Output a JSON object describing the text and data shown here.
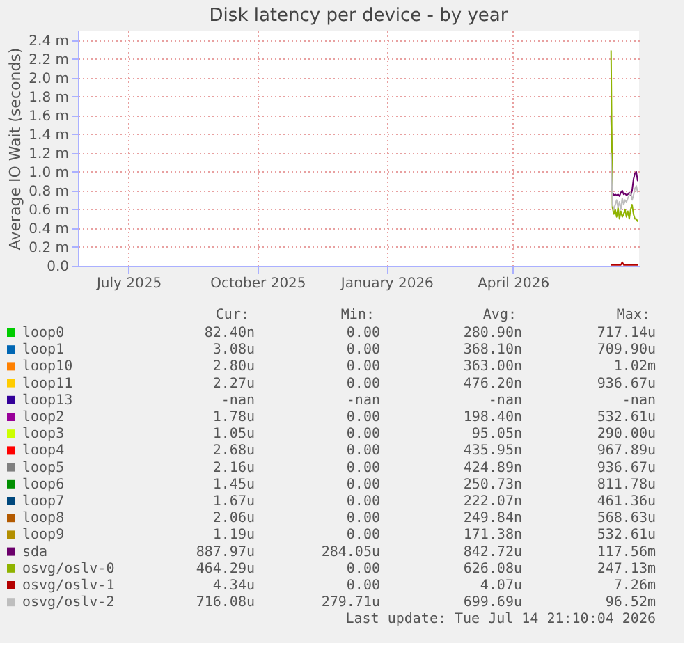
{
  "chart_data": {
    "type": "line",
    "title": "Disk latency per device - by year",
    "ylabel": "Average IO Wait (seconds)",
    "xlim": [
      "2025-06-10",
      "2026-07-15"
    ],
    "xticks": [
      {
        "value": "2025-07-16",
        "label": "July 2025"
      },
      {
        "value": "2025-10-16",
        "label": "October 2025"
      },
      {
        "value": "2026-01-16",
        "label": "January 2026"
      },
      {
        "value": "2026-04-16",
        "label": "April 2026"
      }
    ],
    "ylim": [
      0,
      2.5
    ],
    "yticks": [
      {
        "value": 0,
        "label": "0.0"
      },
      {
        "value": 0.2,
        "label": "0.2 m"
      },
      {
        "value": 0.4,
        "label": "0.4 m"
      },
      {
        "value": 0.6,
        "label": "0.6 m"
      },
      {
        "value": 0.8,
        "label": "0.8 m"
      },
      {
        "value": 1.0,
        "label": "1.0 m"
      },
      {
        "value": 1.2,
        "label": "1.2 m"
      },
      {
        "value": 1.4,
        "label": "1.4 m"
      },
      {
        "value": 1.6,
        "label": "1.6 m"
      },
      {
        "value": 1.8,
        "label": "1.8 m"
      },
      {
        "value": 2.0,
        "label": "2.0 m"
      },
      {
        "value": 2.2,
        "label": "2.2 m"
      },
      {
        "value": 2.4,
        "label": "2.4 m"
      }
    ],
    "grid": true,
    "legend": "bottom",
    "line_style": "solid",
    "series": [
      {
        "name": "loop0",
        "color": "#00cc00",
        "values": [
          null
        ]
      },
      {
        "name": "loop1",
        "color": "#0066b3",
        "values": [
          null
        ]
      },
      {
        "name": "loop10",
        "color": "#ff8000",
        "values": [
          null
        ]
      },
      {
        "name": "loop11",
        "color": "#ffcc00",
        "values": [
          null
        ]
      },
      {
        "name": "loop13",
        "color": "#330099",
        "values": [
          null
        ]
      },
      {
        "name": "loop2",
        "color": "#990099",
        "values": [
          null
        ]
      },
      {
        "name": "loop3",
        "color": "#ccff00",
        "values": [
          null
        ]
      },
      {
        "name": "loop4",
        "color": "#ff0000",
        "values": [
          null
        ]
      },
      {
        "name": "loop5",
        "color": "#808080",
        "values": [
          null
        ]
      },
      {
        "name": "loop6",
        "color": "#008f00",
        "values": [
          null
        ]
      },
      {
        "name": "loop7",
        "color": "#00487d",
        "values": [
          null
        ]
      },
      {
        "name": "loop8",
        "color": "#b35a00",
        "values": [
          null
        ]
      },
      {
        "name": "loop9",
        "color": "#b38f00",
        "values": [
          null
        ]
      },
      {
        "name": "sda",
        "color": "#6b006b",
        "x": [
          "2026-06-25",
          "2026-06-26",
          "2026-06-27",
          "2026-06-28",
          "2026-06-29",
          "2026-06-30",
          "2026-07-01",
          "2026-07-02",
          "2026-07-03",
          "2026-07-04",
          "2026-07-05",
          "2026-07-06",
          "2026-07-07",
          "2026-07-08",
          "2026-07-09",
          "2026-07-10",
          "2026-07-11",
          "2026-07-12",
          "2026-07-13",
          "2026-07-14"
        ],
        "values": [
          1.6,
          0.78,
          0.75,
          0.76,
          0.75,
          0.76,
          0.74,
          0.78,
          0.8,
          0.76,
          0.77,
          0.75,
          0.76,
          0.78,
          0.75,
          0.8,
          0.92,
          0.98,
          1.0,
          0.9
        ]
      },
      {
        "name": "osvg/oslv-0",
        "color": "#8fb300",
        "x": [
          "2026-06-25",
          "2026-06-26",
          "2026-06-27",
          "2026-06-28",
          "2026-06-29",
          "2026-06-30",
          "2026-07-01",
          "2026-07-02",
          "2026-07-03",
          "2026-07-04",
          "2026-07-05",
          "2026-07-06",
          "2026-07-07",
          "2026-07-08",
          "2026-07-09",
          "2026-07-10",
          "2026-07-11",
          "2026-07-12",
          "2026-07-13",
          "2026-07-14"
        ],
        "values": [
          2.29,
          0.62,
          0.55,
          0.6,
          0.52,
          0.62,
          0.5,
          0.58,
          0.52,
          0.55,
          0.6,
          0.52,
          0.58,
          0.5,
          0.6,
          0.65,
          0.55,
          0.5,
          0.5,
          0.47
        ]
      },
      {
        "name": "osvg/oslv-1",
        "color": "#b30000",
        "x": [
          "2026-06-25",
          "2026-07-02",
          "2026-07-03",
          "2026-07-04",
          "2026-07-14"
        ],
        "values": [
          0.01,
          0.01,
          0.04,
          0.01,
          0.01
        ]
      },
      {
        "name": "osvg/oslv-2",
        "color": "#bebebe",
        "x": [
          "2026-06-25",
          "2026-06-26",
          "2026-06-27",
          "2026-06-28",
          "2026-06-29",
          "2026-06-30",
          "2026-07-01",
          "2026-07-02",
          "2026-07-03",
          "2026-07-04",
          "2026-07-05",
          "2026-07-06",
          "2026-07-07",
          "2026-07-08",
          "2026-07-09",
          "2026-07-10",
          "2026-07-11",
          "2026-07-12",
          "2026-07-13",
          "2026-07-14"
        ],
        "values": [
          1.2,
          0.65,
          0.6,
          0.65,
          0.7,
          0.62,
          0.68,
          0.6,
          0.72,
          0.65,
          0.7,
          0.68,
          0.72,
          0.75,
          0.78,
          0.7,
          0.75,
          0.82,
          0.85,
          0.78
        ]
      }
    ],
    "annotations": [
      "Cur:",
      "Min:",
      "Avg:",
      "Max:",
      "82.40n",
      "0.00",
      "280.90n",
      "717.14u",
      "3.08u",
      "0.00",
      "368.10n",
      "709.90u",
      "2.80u",
      "0.00",
      "363.00n",
      "1.02m",
      "2.27u",
      "0.00",
      "476.20n",
      "936.67u",
      "-nan",
      "-nan",
      "-nan",
      "-nan",
      "1.78u",
      "0.00",
      "198.40n",
      "532.61u",
      "1.05u",
      "0.00",
      "95.05n",
      "290.00u",
      "2.68u",
      "0.00",
      "435.95n",
      "967.89u",
      "2.16u",
      "0.00",
      "424.89n",
      "936.67u",
      "1.45u",
      "0.00",
      "250.73n",
      "811.78u",
      "1.67u",
      "0.00",
      "222.07n",
      "461.36u",
      "2.06u",
      "0.00",
      "249.84n",
      "568.63u",
      "1.19u",
      "0.00",
      "171.38n",
      "532.61u",
      "887.97u",
      "284.05u",
      "842.72u",
      "117.56m",
      "464.29u",
      "0.00",
      "626.08u",
      "247.13m",
      "4.34u",
      "0.00",
      "4.07u",
      "7.26m",
      "716.08u",
      "279.71u",
      "699.69u",
      "96.52m",
      "Last update: Tue Jul 14 21:10:04 2026"
    ]
  }
}
